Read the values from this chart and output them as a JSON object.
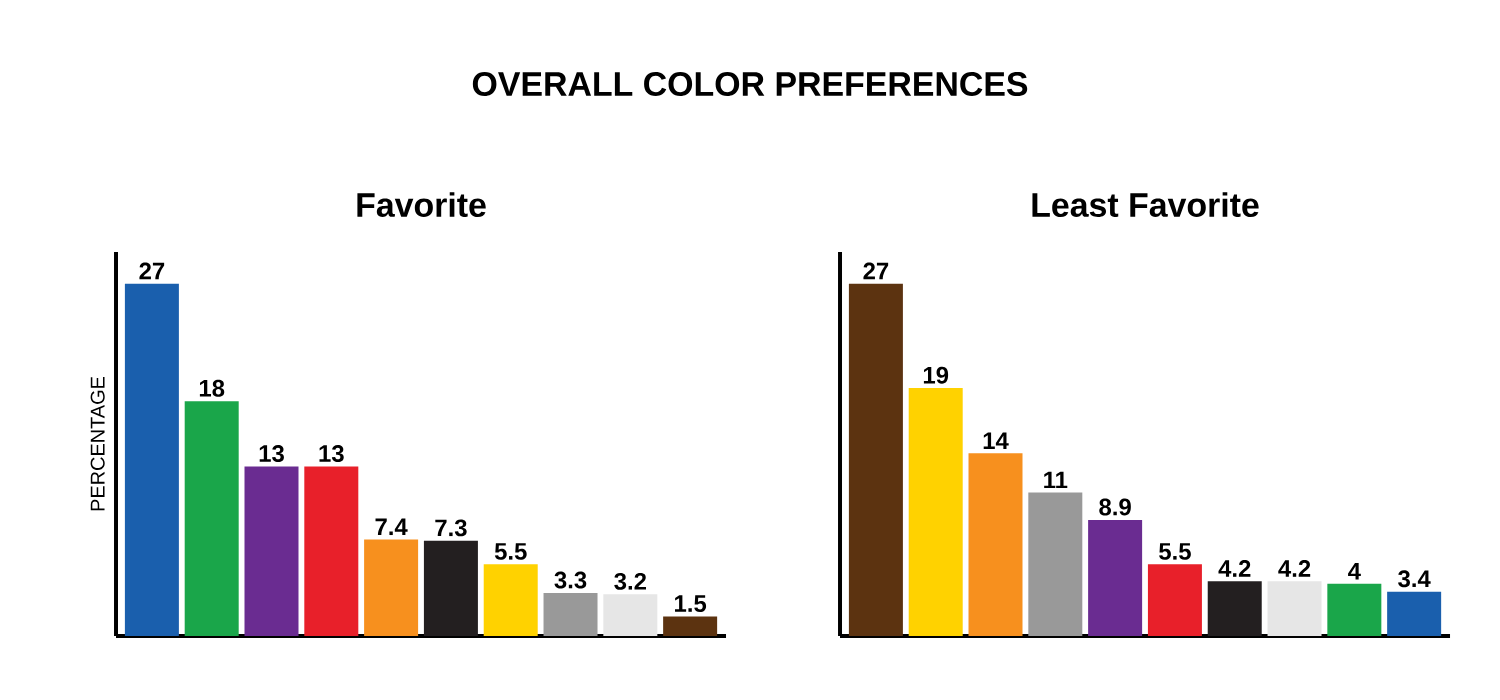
{
  "chart_data": [
    {
      "type": "bar",
      "title": "OVERALL COLOR PREFERENCES",
      "subtitle": "Favorite",
      "ylabel": "PERCENTAGE",
      "categories": [
        null,
        null,
        null,
        null,
        null,
        null,
        null,
        null,
        null,
        null
      ],
      "values": [
        27,
        18,
        13,
        13,
        7.4,
        7.3,
        5.5,
        3.3,
        3.2,
        1.5
      ],
      "colors": [
        "#1a5fad",
        "#1aa64a",
        "#6a2c91",
        "#e8202a",
        "#f7901e",
        "#231f20",
        "#ffd200",
        "#999999",
        "#e6e6e6",
        "#5c3310"
      ],
      "data_labels": true,
      "tick_labels": false
    },
    {
      "type": "bar",
      "subtitle": "Least Favorite",
      "categories": [
        null,
        null,
        null,
        null,
        null,
        null,
        null,
        null,
        null,
        null
      ],
      "values": [
        27,
        19,
        14,
        11,
        8.9,
        5.5,
        4.2,
        4.2,
        4,
        3.4
      ],
      "colors": [
        "#5c3310",
        "#ffd200",
        "#f7901e",
        "#999999",
        "#6a2c91",
        "#e8202a",
        "#231f20",
        "#e6e6e6",
        "#1aa64a",
        "#1a5fad"
      ],
      "data_labels": true,
      "tick_labels": false
    }
  ]
}
